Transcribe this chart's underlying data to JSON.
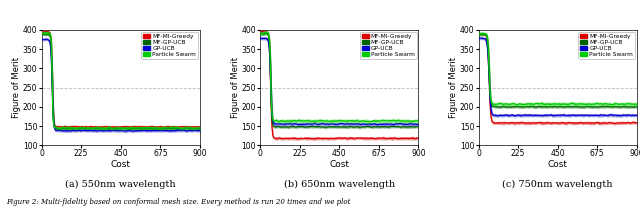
{
  "subplots": [
    {
      "title": "(a) 550nm wavelength",
      "xlabel": "Cost",
      "ylabel": "Figure of Merit",
      "xlim": [
        0,
        900
      ],
      "ylim": [
        100,
        400
      ],
      "yticks": [
        100,
        150,
        200,
        250,
        300,
        350,
        400
      ],
      "xticks": [
        0,
        225,
        450,
        675,
        900
      ]
    },
    {
      "title": "(b) 650nm wavelength",
      "xlabel": "Cost",
      "ylabel": "Figure of Merit",
      "xlim": [
        0,
        900
      ],
      "ylim": [
        100,
        400
      ],
      "yticks": [
        100,
        150,
        200,
        250,
        300,
        350,
        400
      ],
      "xticks": [
        0,
        225,
        450,
        675,
        900
      ]
    },
    {
      "title": "(c) 750nm wavelength",
      "xlabel": "Cost",
      "ylabel": "Figure of Merit",
      "xlim": [
        0,
        900
      ],
      "ylim": [
        100,
        400
      ],
      "yticks": [
        100,
        150,
        200,
        250,
        300,
        350,
        400
      ],
      "xticks": [
        0,
        225,
        450,
        675,
        900
      ]
    }
  ],
  "legend_entries": [
    "MF-MI-Greedy",
    "MF-GP-UCB",
    "GP-UCB",
    "Particle Swarm"
  ],
  "line_colors": [
    "#dd0000",
    "#006400",
    "#0000cc",
    "#00cc00"
  ],
  "fill_alphas": [
    0.3,
    0.3,
    0.3,
    0.3
  ],
  "caption": "Figure 2: Multi-fidelity based on conformal mesh size. Every method is run 20 times and we plot",
  "figsize": [
    6.4,
    2.06
  ],
  "dpi": 100,
  "background_color": "#ffffff",
  "hline_y": 250,
  "hline_color": "#aaaaaa",
  "hline_style": "--",
  "panels": [
    {
      "curves": {
        "MF-MI-Greedy": {
          "start": 395,
          "end": 148,
          "k": 18,
          "noise": 6,
          "final_noise": 3
        },
        "MF-GP-UCB": {
          "start": 388,
          "end": 143,
          "k": 20,
          "noise": 5,
          "final_noise": 3
        },
        "GP-UCB": {
          "start": 375,
          "end": 138,
          "k": 16,
          "noise": 6,
          "final_noise": 3
        },
        "Particle Swarm": {
          "start": 392,
          "end": 145,
          "k": 22,
          "noise": 8,
          "final_noise": 4
        }
      }
    },
    {
      "curves": {
        "MF-MI-Greedy": {
          "start": 395,
          "end": 118,
          "k": 16,
          "noise": 7,
          "final_noise": 4
        },
        "MF-GP-UCB": {
          "start": 390,
          "end": 148,
          "k": 18,
          "noise": 6,
          "final_noise": 4
        },
        "GP-UCB": {
          "start": 378,
          "end": 155,
          "k": 15,
          "noise": 7,
          "final_noise": 4
        },
        "Particle Swarm": {
          "start": 392,
          "end": 163,
          "k": 19,
          "noise": 10,
          "final_noise": 5
        }
      }
    },
    {
      "curves": {
        "MF-MI-Greedy": {
          "start": 390,
          "end": 158,
          "k": 14,
          "noise": 7,
          "final_noise": 5
        },
        "MF-GP-UCB": {
          "start": 388,
          "end": 200,
          "k": 16,
          "noise": 6,
          "final_noise": 5
        },
        "GP-UCB": {
          "start": 378,
          "end": 178,
          "k": 13,
          "noise": 7,
          "final_noise": 5
        },
        "Particle Swarm": {
          "start": 390,
          "end": 207,
          "k": 17,
          "noise": 10,
          "final_noise": 6
        }
      }
    }
  ]
}
